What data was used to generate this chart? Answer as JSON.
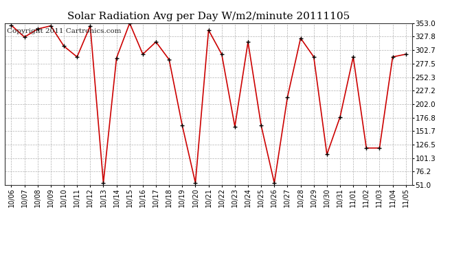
{
  "title": "Solar Radiation Avg per Day W/m2/minute 20111105",
  "copyright": "Copyright 2011 Cartronics.com",
  "dates": [
    "10/06",
    "10/07",
    "10/08",
    "10/09",
    "10/10",
    "10/11",
    "10/12",
    "10/13",
    "10/14",
    "10/15",
    "10/16",
    "10/17",
    "10/18",
    "10/19",
    "10/20",
    "10/21",
    "10/22",
    "10/23",
    "10/24",
    "10/25",
    "10/26",
    "10/27",
    "10/28",
    "10/29",
    "10/30",
    "10/31",
    "11/01",
    "11/02",
    "11/03",
    "11/04",
    "11/05"
  ],
  "values": [
    349.0,
    327.0,
    342.0,
    348.0,
    310.0,
    290.0,
    348.0,
    55.0,
    288.0,
    353.0,
    295.0,
    318.0,
    285.0,
    162.0,
    55.0,
    340.0,
    295.0,
    160.0,
    318.0,
    162.0,
    55.0,
    215.0,
    325.0,
    290.0,
    108.0,
    178.0,
    290.0,
    120.0,
    120.0,
    290.0,
    295.0
  ],
  "ylim": [
    51.0,
    353.0
  ],
  "yticks": [
    51.0,
    76.2,
    101.3,
    126.5,
    151.7,
    176.8,
    202.0,
    227.2,
    252.3,
    277.5,
    302.7,
    327.8,
    353.0
  ],
  "line_color": "#cc0000",
  "marker_color": "#000000",
  "bg_color": "#ffffff",
  "grid_color": "#b0b0b0",
  "title_fontsize": 11,
  "copyright_fontsize": 7.5
}
